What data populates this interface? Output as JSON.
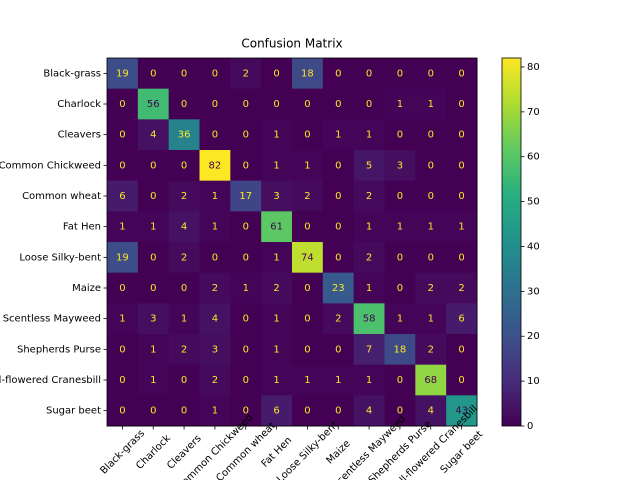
{
  "chart_data": {
    "type": "heatmap",
    "title": "Confusion Matrix",
    "categories": [
      "Black-grass",
      "Charlock",
      "Cleavers",
      "Common Chickweed",
      "Common wheat",
      "Fat Hen",
      "Loose Silky-bent",
      "Maize",
      "Scentless Mayweed",
      "Shepherds Purse",
      "Small-flowered Cranesbill",
      "Sugar beet"
    ],
    "values": [
      [
        19,
        0,
        0,
        0,
        2,
        0,
        18,
        0,
        0,
        0,
        0,
        0
      ],
      [
        0,
        56,
        0,
        0,
        0,
        0,
        0,
        0,
        0,
        1,
        1,
        0
      ],
      [
        0,
        4,
        36,
        0,
        0,
        1,
        0,
        1,
        1,
        0,
        0,
        0
      ],
      [
        0,
        0,
        0,
        82,
        0,
        1,
        1,
        0,
        5,
        3,
        0,
        0
      ],
      [
        6,
        0,
        2,
        1,
        17,
        3,
        2,
        0,
        2,
        0,
        0,
        0
      ],
      [
        1,
        1,
        4,
        1,
        0,
        61,
        0,
        0,
        1,
        1,
        1,
        1
      ],
      [
        19,
        0,
        2,
        0,
        0,
        1,
        74,
        0,
        2,
        0,
        0,
        0
      ],
      [
        0,
        0,
        0,
        2,
        1,
        2,
        0,
        23,
        1,
        0,
        2,
        2
      ],
      [
        1,
        3,
        1,
        4,
        0,
        1,
        0,
        2,
        58,
        1,
        1,
        6
      ],
      [
        0,
        1,
        2,
        3,
        0,
        1,
        0,
        0,
        7,
        18,
        2,
        0
      ],
      [
        0,
        1,
        0,
        2,
        0,
        1,
        1,
        1,
        1,
        0,
        68,
        0
      ],
      [
        0,
        0,
        0,
        1,
        0,
        6,
        0,
        0,
        4,
        0,
        4,
        43
      ]
    ],
    "colormap": "viridis",
    "clim": [
      0,
      82
    ],
    "cticks": [
      0,
      10,
      20,
      30,
      40,
      50,
      60,
      70,
      80
    ]
  }
}
